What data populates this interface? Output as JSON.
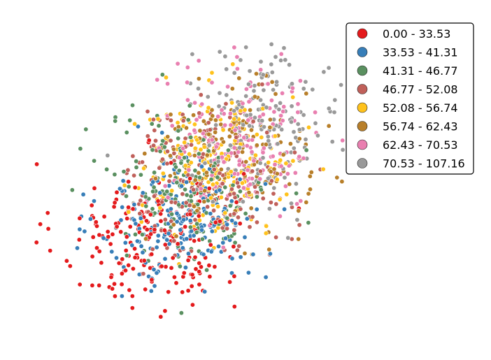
{
  "chart_data": {
    "type": "scatter",
    "title": "",
    "xlabel": "",
    "ylabel": "",
    "axes_visible": false,
    "grid": false,
    "xlim": [
      -4.5,
      4.5
    ],
    "ylim": [
      -3.5,
      3.5
    ],
    "legend_placement": "top-right",
    "legend": [
      {
        "label": "0.00 - 33.53",
        "color": "#e41a1c"
      },
      {
        "label": "33.53 - 41.31",
        "color": "#377eb8"
      },
      {
        "label": "41.31 - 46.77",
        "color": "#5a9060"
      },
      {
        "label": "46.77 - 52.08",
        "color": "#c0605a"
      },
      {
        "label": "52.08 - 56.74",
        "color": "#ffc21c"
      },
      {
        "label": "56.74 - 62.43",
        "color": "#b87f2a"
      },
      {
        "label": "62.43 - 70.53",
        "color": "#e97fb0"
      },
      {
        "label": "70.53 - 107.16",
        "color": "#999999"
      }
    ],
    "point_clusters": [
      {
        "class": 0,
        "center": [
          -1.5,
          -1.3
        ],
        "spread": [
          1.15,
          0.85
        ],
        "count": 200
      },
      {
        "class": 1,
        "center": [
          -0.7,
          -0.9
        ],
        "spread": [
          1.0,
          0.75
        ],
        "count": 195
      },
      {
        "class": 2,
        "center": [
          -0.5,
          -0.2
        ],
        "spread": [
          1.0,
          0.85
        ],
        "count": 190
      },
      {
        "class": 3,
        "center": [
          -0.1,
          0.0
        ],
        "spread": [
          1.0,
          0.85
        ],
        "count": 190
      },
      {
        "class": 4,
        "center": [
          0.2,
          0.35
        ],
        "spread": [
          1.0,
          0.8
        ],
        "count": 190
      },
      {
        "class": 5,
        "center": [
          0.5,
          0.5
        ],
        "spread": [
          0.95,
          0.8
        ],
        "count": 185
      },
      {
        "class": 6,
        "center": [
          0.8,
          0.9
        ],
        "spread": [
          0.95,
          0.8
        ],
        "count": 180
      },
      {
        "class": 7,
        "center": [
          1.4,
          1.3
        ],
        "spread": [
          0.95,
          0.85
        ],
        "count": 175
      }
    ]
  }
}
